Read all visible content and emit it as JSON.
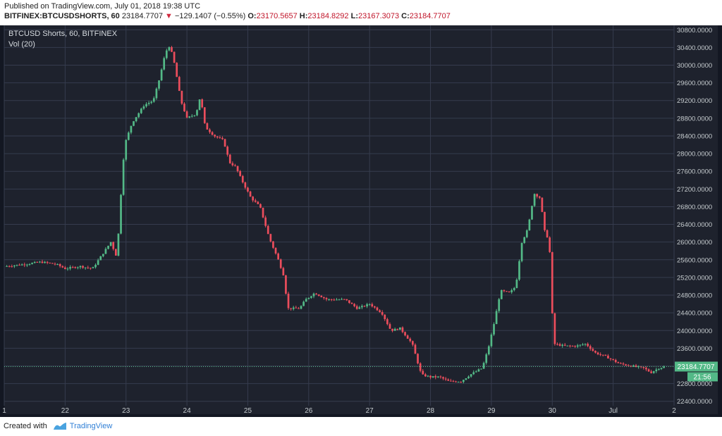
{
  "header": {
    "published": "Published on TradingView.com, July 01, 2018 19:38 UTC",
    "symbol": "BITFINEX:BTCUSDSHORTS, 60",
    "last": "23184.7707",
    "change_arrow": "▼",
    "change": "−129.1407 (−0.55%)",
    "o_label": "O:",
    "o": "23170.5657",
    "h_label": "H:",
    "h": "23184.8292",
    "l_label": "L:",
    "l": "23167.3073",
    "c_label": "C:",
    "c": "23184.7707"
  },
  "legend": {
    "title": "BTCUSD Shorts, 60, BITFINEX",
    "vol": "Vol (20)"
  },
  "price_label": {
    "value": "23184.7707",
    "countdown": "21:56"
  },
  "footer": {
    "created_with": "Created with",
    "brand": "TradingView"
  },
  "colors": {
    "background": "#1e222d",
    "grid": "#363c4e",
    "up": "#53b987",
    "down": "#eb4d5c",
    "price_line": "#53b987",
    "axis_text": "#c5cbce",
    "logo": "#4aa3df"
  },
  "chart_data": {
    "type": "candlestick",
    "title": "BTCUSD Shorts, 60, BITFINEX",
    "interval": "60",
    "ylim": [
      22300,
      30900
    ],
    "y_ticks": [
      22400,
      22800,
      23200,
      23600,
      24000,
      24400,
      24800,
      25200,
      25600,
      26000,
      26400,
      26800,
      27200,
      27600,
      28000,
      28400,
      28800,
      29200,
      29600,
      30000,
      30400,
      30800
    ],
    "y_tick_labels": [
      "22400.0000",
      "22800.0000",
      "23200.0000",
      "23600.0000",
      "24000.0000",
      "24400.0000",
      "24800.0000",
      "25200.0000",
      "25600.0000",
      "26000.0000",
      "26400.0000",
      "26800.0000",
      "27200.0000",
      "27600.0000",
      "28000.0000",
      "28400.0000",
      "28800.0000",
      "29200.0000",
      "29600.0000",
      "30000.0000",
      "30400.0000",
      "30800.0000"
    ],
    "x_labels": [
      {
        "label": "1",
        "day": 21.0
      },
      {
        "label": "22",
        "day": 22.0
      },
      {
        "label": "23",
        "day": 23.0
      },
      {
        "label": "24",
        "day": 24.0
      },
      {
        "label": "25",
        "day": 25.0
      },
      {
        "label": "26",
        "day": 26.0
      },
      {
        "label": "27",
        "day": 27.0
      },
      {
        "label": "28",
        "day": 28.0
      },
      {
        "label": "29",
        "day": 29.0
      },
      {
        "label": "30",
        "day": 30.0
      },
      {
        "label": "Jul",
        "day": 31.0
      },
      {
        "label": "2",
        "day": 32.0
      }
    ],
    "xlim": [
      21.0,
      32.0
    ],
    "last_price": 23184.7707,
    "anchors": [
      [
        21.0,
        25450
      ],
      [
        21.35,
        25500
      ],
      [
        21.6,
        25550
      ],
      [
        21.85,
        25500
      ],
      [
        22.0,
        25400
      ],
      [
        22.25,
        25450
      ],
      [
        22.45,
        25400
      ],
      [
        22.55,
        25600
      ],
      [
        22.75,
        26000
      ],
      [
        22.85,
        25650
      ],
      [
        22.95,
        27800
      ],
      [
        23.0,
        28300
      ],
      [
        23.1,
        28700
      ],
      [
        23.3,
        29100
      ],
      [
        23.45,
        29200
      ],
      [
        23.55,
        29700
      ],
      [
        23.65,
        30300
      ],
      [
        23.72,
        30450
      ],
      [
        23.8,
        30000
      ],
      [
        23.9,
        29200
      ],
      [
        24.0,
        28800
      ],
      [
        24.15,
        28900
      ],
      [
        24.22,
        29300
      ],
      [
        24.3,
        28600
      ],
      [
        24.45,
        28400
      ],
      [
        24.6,
        28300
      ],
      [
        24.7,
        27800
      ],
      [
        24.8,
        27700
      ],
      [
        24.9,
        27400
      ],
      [
        25.05,
        27000
      ],
      [
        25.2,
        26800
      ],
      [
        25.35,
        26100
      ],
      [
        25.5,
        25600
      ],
      [
        25.6,
        25200
      ],
      [
        25.65,
        24500
      ],
      [
        25.85,
        24500
      ],
      [
        25.95,
        24700
      ],
      [
        26.1,
        24850
      ],
      [
        26.3,
        24700
      ],
      [
        26.6,
        24700
      ],
      [
        26.8,
        24500
      ],
      [
        27.0,
        24600
      ],
      [
        27.2,
        24400
      ],
      [
        27.35,
        24000
      ],
      [
        27.5,
        24050
      ],
      [
        27.7,
        23700
      ],
      [
        27.85,
        23000
      ],
      [
        28.0,
        22950
      ],
      [
        28.15,
        22950
      ],
      [
        28.3,
        22850
      ],
      [
        28.5,
        22850
      ],
      [
        28.65,
        23000
      ],
      [
        28.85,
        23150
      ],
      [
        28.95,
        23600
      ],
      [
        29.05,
        24200
      ],
      [
        29.15,
        24900
      ],
      [
        29.3,
        24850
      ],
      [
        29.4,
        25000
      ],
      [
        29.5,
        26000
      ],
      [
        29.6,
        26300
      ],
      [
        29.7,
        27100
      ],
      [
        29.8,
        27000
      ],
      [
        29.88,
        26200
      ],
      [
        29.95,
        26050
      ],
      [
        30.02,
        23700
      ],
      [
        30.2,
        23650
      ],
      [
        30.4,
        23650
      ],
      [
        30.55,
        23700
      ],
      [
        30.7,
        23500
      ],
      [
        30.9,
        23400
      ],
      [
        31.1,
        23250
      ],
      [
        31.3,
        23200
      ],
      [
        31.5,
        23150
      ],
      [
        31.62,
        23050
      ],
      [
        31.75,
        23150
      ],
      [
        31.85,
        23185
      ]
    ]
  }
}
